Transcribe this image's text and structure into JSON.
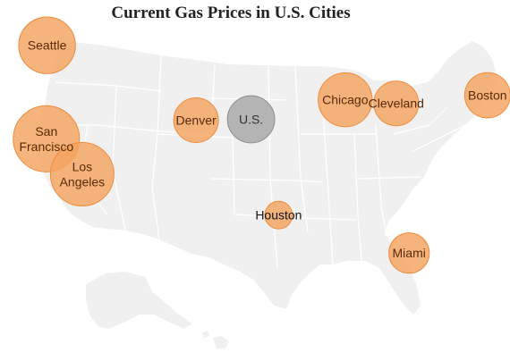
{
  "title": "Current Gas Prices in U.S. Cities",
  "colors": {
    "bubble_fill": "#f4a460",
    "bubble_stroke": "#f08c3a",
    "us_fill": "#a9a9a9",
    "us_stroke": "#8c8c8c",
    "land": "#f0f0f0",
    "label_dark": "#5a2a05",
    "label_us": "#333333"
  },
  "chart_data": {
    "type": "bubble-map",
    "region": "United States",
    "title": "Current Gas Prices in U.S. Cities",
    "size_scale": "relative price (values not printed)",
    "cities": [
      {
        "name": "Seattle",
        "lines": [
          "Seattle"
        ],
        "lon": -122.33,
        "lat": 47.61,
        "relative_size": 0.66,
        "kind": "city"
      },
      {
        "name": "San Francisco",
        "lines": [
          "San",
          "Francisco"
        ],
        "lon": -122.42,
        "lat": 37.77,
        "relative_size": 0.77,
        "kind": "city"
      },
      {
        "name": "Los Angeles",
        "lines": [
          "Los",
          "Angeles"
        ],
        "lon": -118.24,
        "lat": 34.05,
        "relative_size": 0.74,
        "kind": "city"
      },
      {
        "name": "Denver",
        "lines": [
          "Denver"
        ],
        "lon": -104.99,
        "lat": 39.74,
        "relative_size": 0.52,
        "kind": "city"
      },
      {
        "name": "U.S.",
        "lines": [
          "U.S."
        ],
        "lon": -98.58,
        "lat": 39.83,
        "relative_size": 0.55,
        "kind": "average"
      },
      {
        "name": "Chicago",
        "lines": [
          "Chicago"
        ],
        "lon": -87.63,
        "lat": 41.88,
        "relative_size": 0.63,
        "kind": "city"
      },
      {
        "name": "Cleveland",
        "lines": [
          "Cleveland"
        ],
        "lon": -81.69,
        "lat": 41.5,
        "relative_size": 0.52,
        "kind": "city"
      },
      {
        "name": "Boston",
        "lines": [
          "Boston"
        ],
        "lon": -71.06,
        "lat": 42.36,
        "relative_size": 0.53,
        "kind": "city"
      },
      {
        "name": "Houston",
        "lines": [
          "Houston"
        ],
        "lon": -95.37,
        "lat": 29.76,
        "relative_size": 0.32,
        "kind": "city"
      },
      {
        "name": "Miami",
        "lines": [
          "Miami"
        ],
        "lon": -80.19,
        "lat": 25.76,
        "relative_size": 0.47,
        "kind": "city"
      }
    ]
  }
}
